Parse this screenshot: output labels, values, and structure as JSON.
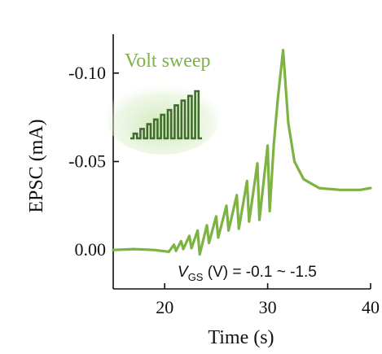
{
  "chart_data": {
    "type": "line",
    "xlabel": "Time (s)",
    "ylabel": "EPSC (mA)",
    "xlim": [
      15,
      40
    ],
    "ylim": [
      0.022,
      -0.122
    ],
    "x_ticks": [
      20,
      30,
      40
    ],
    "y_ticks": [
      {
        "value": 0.0,
        "label": "0.00"
      },
      {
        "value": -0.05,
        "label": "-0.05"
      },
      {
        "value": -0.1,
        "label": "-0.10"
      }
    ],
    "series": [
      {
        "color": "#7cb342",
        "x": [
          15,
          17,
          19,
          20.4,
          20.9,
          21.1,
          21.6,
          21.8,
          22.4,
          22.6,
          23.2,
          23.4,
          24.1,
          24.3,
          25.0,
          25.2,
          26.0,
          26.2,
          27.0,
          27.2,
          28.0,
          28.2,
          29.0,
          29.2,
          30.0,
          30.2,
          30.6,
          31.0,
          31.5,
          32.0,
          32.6,
          33.5,
          35.0,
          37.0,
          39.0,
          40.0
        ],
        "y": [
          0.0,
          -0.0005,
          0.0,
          0.001,
          -0.003,
          0.0005,
          -0.005,
          -0.0005,
          -0.008,
          -0.001,
          -0.011,
          0.0025,
          -0.014,
          -0.004,
          -0.019,
          -0.007,
          -0.025,
          -0.011,
          -0.031,
          -0.012,
          -0.039,
          -0.016,
          -0.049,
          -0.017,
          -0.059,
          -0.022,
          -0.06,
          -0.086,
          -0.113,
          -0.072,
          -0.05,
          -0.04,
          -0.035,
          -0.034,
          -0.034,
          -0.035
        ]
      }
    ],
    "annotations": {
      "title": "Volt sweep",
      "title_color": "#7cb342",
      "condition_prefix": "V",
      "condition_sub": "GS",
      "condition_text": " (V) = -0.1 ~ -1.5"
    },
    "inset_icon": {
      "name": "voltage-step-pulse-icon",
      "color": "#3f6e2a",
      "levels": [
        0.1,
        0.2,
        0.3,
        0.4,
        0.5,
        0.6,
        0.7,
        0.8,
        0.9,
        1.0
      ]
    }
  }
}
